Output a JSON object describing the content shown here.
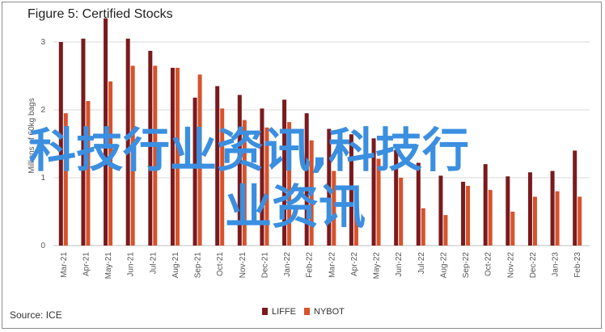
{
  "title": "Figure 5: Certified Stocks",
  "source": "Source: ICE",
  "watermark": {
    "line1": "科技行业资讯,科技行",
    "line2": "业资讯"
  },
  "colors": {
    "LIFFE": "#7a1a1d",
    "NYBOT": "#d6532c",
    "grid": "#d9d9d9",
    "watermark": "#3b8fe0"
  },
  "chart_data": {
    "type": "bar",
    "ylabel": "Millions of 60kg bags",
    "ylim": [
      0,
      3
    ],
    "yticks": [
      0,
      1,
      2,
      3
    ],
    "grid": true,
    "legend": "bottom",
    "categories": [
      "Mar-21",
      "Apr-21",
      "May-21",
      "Jun-21",
      "Jul-21",
      "Aug-21",
      "Sep-21",
      "Oct-21",
      "Nov-21",
      "Dec-21",
      "Jan-22",
      "Feb-22",
      "Mar-22",
      "Apr-22",
      "May-22",
      "Jun-22",
      "Jul-22",
      "Aug-22",
      "Sep-22",
      "Oct-22",
      "Nov-22",
      "Dec-22",
      "Jan-23",
      "Feb-23"
    ],
    "tick_labels": [
      "Mar-21",
      "Apr-21",
      "May-21",
      "Jun-21",
      "Jul-21",
      "Aug-21",
      "Sep-21",
      "Oct-21",
      "Nov-21",
      "Dec-21",
      "Jan-22",
      "Feb-22",
      "Mar-22",
      "Apr-22",
      "May-22",
      "Jun-22",
      "Jul-22",
      "Aug-22",
      "Sep-22",
      "Oct-22",
      "Nov-22",
      "Dec-22",
      "Jan-23",
      "Feb-23"
    ],
    "series": [
      {
        "name": "LIFFE",
        "values": [
          3.0,
          3.05,
          3.35,
          3.05,
          2.87,
          2.62,
          2.18,
          2.35,
          2.22,
          2.02,
          2.15,
          1.95,
          1.72,
          1.64,
          1.58,
          1.41,
          1.22,
          1.03,
          0.94,
          1.2,
          1.02,
          1.08,
          1.1,
          1.4
        ]
      },
      {
        "name": "NYBOT",
        "values": [
          1.95,
          2.13,
          2.42,
          2.65,
          2.65,
          2.62,
          2.52,
          2.02,
          1.85,
          1.74,
          1.82,
          1.55,
          1.1,
          0.7,
          1.28,
          1.0,
          0.55,
          0.45,
          0.88,
          0.82,
          0.5,
          0.72,
          0.8,
          0.72
        ]
      }
    ]
  }
}
